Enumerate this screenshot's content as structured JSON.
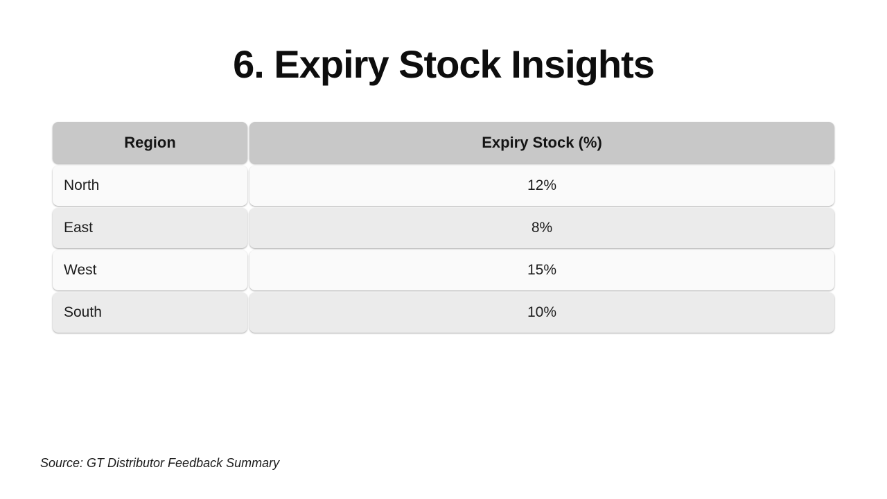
{
  "slide": {
    "title": "6. Expiry Stock Insights",
    "source_note": "Source: GT Distributor Feedback Summary"
  },
  "table": {
    "columns": [
      "Region",
      "Expiry Stock (%)"
    ],
    "rows": [
      {
        "region": "North",
        "expiry_stock": "12%"
      },
      {
        "region": "East",
        "expiry_stock": "8%"
      },
      {
        "region": "West",
        "expiry_stock": "15%"
      },
      {
        "region": "South",
        "expiry_stock": "10%"
      }
    ]
  },
  "colors": {
    "header_bg": "#c8c8c8",
    "row_odd_bg": "#fafafa",
    "row_even_bg": "#ebebeb",
    "background": "#ffffff",
    "text": "#111111"
  }
}
